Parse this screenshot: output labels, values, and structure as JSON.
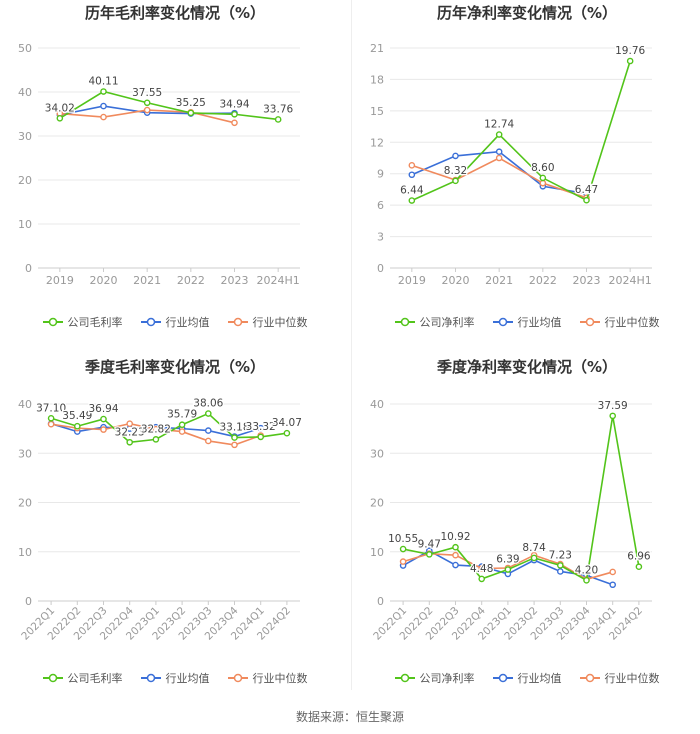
{
  "source": "数据来源：恒生聚源",
  "legend_labels": {
    "company_gross": "公司毛利率",
    "company_net": "公司净利率",
    "industry_avg": "行业均值",
    "industry_median": "行业中位数"
  },
  "colors": {
    "company": "#52c41a",
    "industry_avg": "#3a6fd8",
    "industry_median": "#f08a5d",
    "grid": "#e8e8e8",
    "axis_text": "#999999"
  },
  "chart_data": [
    {
      "id": "annual-gross",
      "type": "line",
      "title": "历年毛利率变化情况（%）",
      "categories": [
        "2019",
        "2020",
        "2021",
        "2022",
        "2023",
        "2024H1"
      ],
      "ylim": [
        0,
        50
      ],
      "yticks": [
        0,
        10,
        20,
        30,
        40,
        50
      ],
      "series": [
        {
          "name": "公司毛利率",
          "key": "company",
          "values": [
            34.02,
            40.11,
            37.55,
            35.25,
            34.94,
            33.76
          ],
          "labels": [
            "34.02",
            "40.11",
            "37.55",
            "35.25",
            "34.94",
            "33.76"
          ]
        },
        {
          "name": "行业均值",
          "key": "industry_avg",
          "values": [
            34.8,
            36.8,
            35.3,
            35.1,
            35.2,
            null
          ]
        },
        {
          "name": "行业中位数",
          "key": "industry_median",
          "values": [
            35.1,
            34.3,
            35.9,
            35.4,
            33.0,
            null
          ]
        }
      ]
    },
    {
      "id": "annual-net",
      "type": "line",
      "title": "历年净利率变化情况（%）",
      "categories": [
        "2019",
        "2020",
        "2021",
        "2022",
        "2023",
        "2024H1"
      ],
      "ylim": [
        0,
        21
      ],
      "yticks": [
        0,
        3,
        6,
        9,
        12,
        15,
        18,
        21
      ],
      "series": [
        {
          "name": "公司净利率",
          "key": "company",
          "values": [
            6.44,
            8.32,
            12.74,
            8.6,
            6.47,
            19.76
          ],
          "labels": [
            "6.44",
            "8.32",
            "12.74",
            "8.60",
            "6.47",
            "19.76"
          ]
        },
        {
          "name": "行业均值",
          "key": "industry_avg",
          "values": [
            8.9,
            10.7,
            11.1,
            7.8,
            7.1,
            null
          ]
        },
        {
          "name": "行业中位数",
          "key": "industry_median",
          "values": [
            9.8,
            8.4,
            10.5,
            8.1,
            6.7,
            null
          ]
        }
      ]
    },
    {
      "id": "quarterly-gross",
      "type": "line",
      "title": "季度毛利率变化情况（%）",
      "categories": [
        "2022Q1",
        "2022Q2",
        "2022Q3",
        "2022Q4",
        "2023Q1",
        "2023Q2",
        "2023Q3",
        "2023Q4",
        "2024Q1",
        "2024Q2"
      ],
      "ylim": [
        0,
        40
      ],
      "yticks": [
        0,
        10,
        20,
        30,
        40
      ],
      "series": [
        {
          "name": "公司毛利率",
          "key": "company",
          "values": [
            37.1,
            35.49,
            36.94,
            32.23,
            32.82,
            35.79,
            38.06,
            33.18,
            33.32,
            34.07
          ],
          "labels": [
            "37.10",
            "35.49",
            "36.94",
            "32.23",
            "32.82",
            "35.79",
            "38.06",
            "33.18",
            "33.32",
            "34.07"
          ]
        },
        {
          "name": "行业均值",
          "key": "industry_avg",
          "values": [
            36.0,
            34.4,
            35.3,
            35.0,
            35.3,
            35.0,
            34.6,
            33.4,
            35.1,
            null
          ]
        },
        {
          "name": "行业中位数",
          "key": "industry_median",
          "values": [
            35.9,
            35.1,
            34.8,
            36.0,
            34.9,
            34.4,
            32.5,
            31.7,
            33.6,
            null
          ]
        }
      ]
    },
    {
      "id": "quarterly-net",
      "type": "line",
      "title": "季度净利率变化情况（%）",
      "categories": [
        "2022Q1",
        "2022Q2",
        "2022Q3",
        "2022Q4",
        "2023Q1",
        "2023Q2",
        "2023Q3",
        "2023Q4",
        "2024Q1",
        "2024Q2"
      ],
      "ylim": [
        0,
        40
      ],
      "yticks": [
        0,
        10,
        20,
        30,
        40
      ],
      "series": [
        {
          "name": "公司净利率",
          "key": "company",
          "values": [
            10.55,
            9.47,
            10.92,
            4.48,
            6.39,
            8.74,
            7.23,
            4.2,
            37.59,
            6.96
          ],
          "labels": [
            "10.55",
            "9.47",
            "10.92",
            "4.48",
            "6.39",
            "8.74",
            "7.23",
            "4.20",
            "37.59",
            "6.96"
          ]
        },
        {
          "name": "行业均值",
          "key": "industry_avg",
          "values": [
            7.2,
            10.2,
            7.3,
            7.0,
            5.5,
            8.3,
            6.0,
            5.2,
            3.3,
            null
          ]
        },
        {
          "name": "行业中位数",
          "key": "industry_median",
          "values": [
            8.0,
            9.6,
            9.3,
            6.6,
            6.7,
            9.3,
            7.5,
            4.4,
            5.9,
            null
          ]
        }
      ]
    }
  ]
}
